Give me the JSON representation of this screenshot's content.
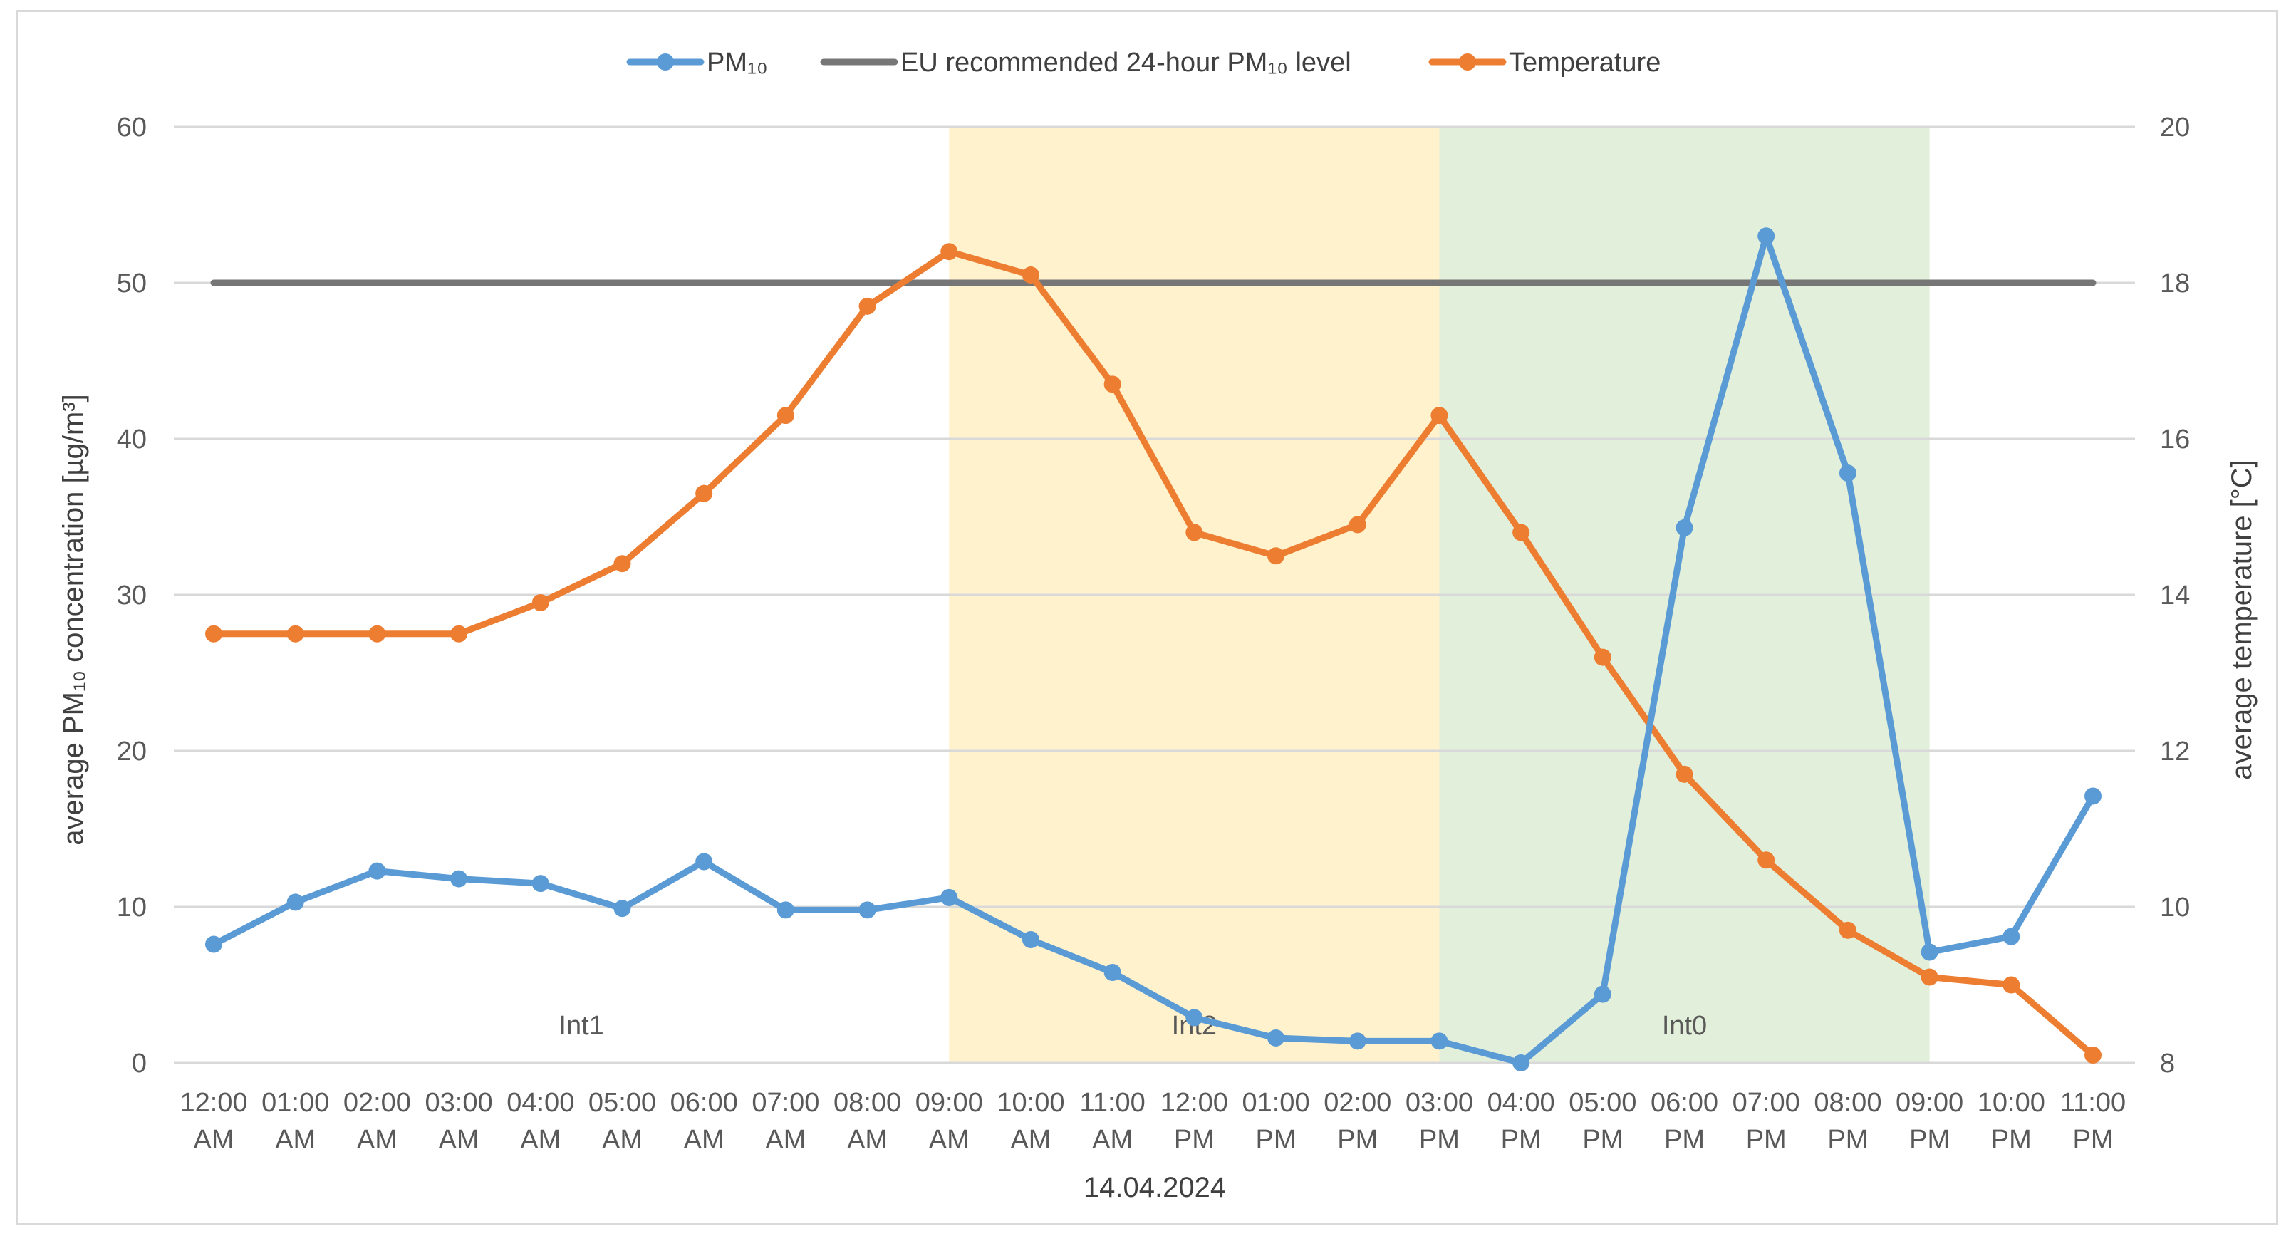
{
  "chart_data": {
    "type": "line",
    "xlabel": "14.04.2024",
    "ylabel_left": "average PM₁₀ concentration [µg/m³]",
    "ylabel_right": "average temperature [°C]",
    "ylim_left": [
      0,
      60
    ],
    "ylim_right": [
      8,
      20
    ],
    "left_ticks": [
      "0",
      "10",
      "20",
      "30",
      "40",
      "50",
      "60"
    ],
    "right_ticks": [
      "8",
      "10",
      "12",
      "14",
      "16",
      "18",
      "20"
    ],
    "categories": [
      [
        "12:00",
        "AM"
      ],
      [
        "01:00",
        "AM"
      ],
      [
        "02:00",
        "AM"
      ],
      [
        "03:00",
        "AM"
      ],
      [
        "04:00",
        "AM"
      ],
      [
        "05:00",
        "AM"
      ],
      [
        "06:00",
        "AM"
      ],
      [
        "07:00",
        "AM"
      ],
      [
        "08:00",
        "AM"
      ],
      [
        "09:00",
        "AM"
      ],
      [
        "10:00",
        "AM"
      ],
      [
        "11:00",
        "AM"
      ],
      [
        "12:00",
        "PM"
      ],
      [
        "01:00",
        "PM"
      ],
      [
        "02:00",
        "PM"
      ],
      [
        "03:00",
        "PM"
      ],
      [
        "04:00",
        "PM"
      ],
      [
        "05:00",
        "PM"
      ],
      [
        "06:00",
        "PM"
      ],
      [
        "07:00",
        "PM"
      ],
      [
        "08:00",
        "PM"
      ],
      [
        "09:00",
        "PM"
      ],
      [
        "10:00",
        "PM"
      ],
      [
        "11:00",
        "PM"
      ]
    ],
    "grid": true,
    "legend_position": "top",
    "bands": [
      {
        "label": "Int1",
        "from_index": 0,
        "to_index": 9,
        "color": "#ffffff"
      },
      {
        "label": "Int2",
        "from_index": 9,
        "to_index": 15,
        "color": "#fff2cc"
      },
      {
        "label": "Int0",
        "from_index": 15,
        "to_index": 21,
        "color": "#e2efda"
      }
    ],
    "series": [
      {
        "name": "PM₁₀",
        "axis": "left",
        "color": "#5b9bd5",
        "markers": true,
        "values": [
          7.6,
          10.3,
          12.3,
          11.8,
          11.5,
          9.9,
          12.9,
          9.8,
          9.8,
          10.6,
          7.9,
          5.8,
          2.9,
          1.6,
          1.4,
          1.4,
          0.0,
          4.4,
          34.3,
          53.0,
          37.8,
          7.1,
          8.1,
          17.1
        ]
      },
      {
        "name": "EU recommended 24-hour PM₁₀ level",
        "axis": "left",
        "color": "#767676",
        "markers": false,
        "values": [
          50,
          50,
          50,
          50,
          50,
          50,
          50,
          50,
          50,
          50,
          50,
          50,
          50,
          50,
          50,
          50,
          50,
          50,
          50,
          50,
          50,
          50,
          50,
          50
        ]
      },
      {
        "name": "Temperature",
        "axis": "right",
        "color": "#ed7d31",
        "markers": true,
        "values": [
          13.5,
          13.5,
          13.5,
          13.5,
          13.9,
          14.4,
          15.3,
          16.3,
          17.7,
          18.4,
          18.1,
          16.7,
          14.8,
          14.5,
          14.9,
          16.3,
          14.8,
          13.2,
          11.7,
          10.6,
          9.7,
          9.1,
          9.0,
          8.1
        ]
      }
    ]
  }
}
